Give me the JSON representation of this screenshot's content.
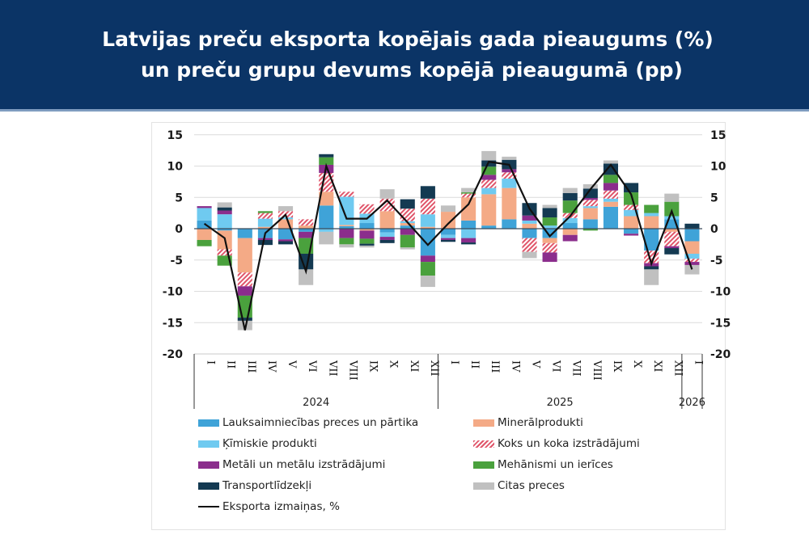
{
  "header": {
    "title_line1": "Latvijas preču eksporta kopējais gada pieaugums (%)",
    "title_line2": "un preču grupu devums kopējā pieaugumā (pp)",
    "background_color": "#0b3466"
  },
  "chart_data": {
    "type": "bar",
    "stacked": true,
    "title": "Latvijas preču eksporta kopējais gada pieaugums (%) un preču grupu devums kopējā pieaugumā (pp)",
    "xlabel": "",
    "ylabel": "",
    "ylim": [
      -20,
      15
    ],
    "yticks": [
      15,
      10,
      5,
      0,
      -5,
      -10,
      -15,
      -20
    ],
    "y_tick_labels": [
      "15",
      "10",
      "5",
      "0",
      "-5",
      "-10",
      "-15",
      "-20"
    ],
    "grid": true,
    "legend_position": "bottom",
    "categories": [
      "I",
      "II",
      "III",
      "IV",
      "V",
      "VI",
      "VII",
      "VIII",
      "IX",
      "X",
      "XI",
      "XII",
      "I",
      "II",
      "III",
      "IV",
      "V",
      "VI",
      "VII",
      "VIII",
      "IX",
      "X",
      "XI",
      "XII",
      "I"
    ],
    "year_groups": [
      {
        "label": "2024",
        "count": 12
      },
      {
        "label": "2025",
        "count": 12
      },
      {
        "label": "2026",
        "count": 1
      }
    ],
    "series": [
      {
        "name": "Lauksaimniecības preces un pārtika",
        "color": "#3fa3d8",
        "pattern": "solid",
        "values": [
          1.3,
          -0.3,
          -1.5,
          -1.5,
          -1.7,
          -0.5,
          3.7,
          0.4,
          0.9,
          -0.6,
          0.5,
          -4.3,
          -1.0,
          1.3,
          0.5,
          1.5,
          -1.5,
          -1.5,
          0.9,
          1.5,
          3.5,
          -0.8,
          -3.5,
          1.5,
          -2.0
        ]
      },
      {
        "name": "Minerālprodukti",
        "color": "#f4aa86",
        "pattern": "solid",
        "values": [
          -1.8,
          -3.0,
          -5.5,
          0.3,
          1.5,
          0.5,
          2.2,
          0.2,
          -0.3,
          2.8,
          0.4,
          0.3,
          2.7,
          3.7,
          5.0,
          5.0,
          0.8,
          -0.8,
          -1.0,
          1.8,
          0.8,
          2.0,
          2.0,
          -0.5,
          -2.0
        ]
      },
      {
        "name": "Ķīmiskie produkti",
        "color": "#6fcaf0",
        "pattern": "solid",
        "values": [
          2.0,
          2.3,
          0.0,
          1.3,
          0.3,
          0.0,
          -0.5,
          4.5,
          1.5,
          -0.7,
          0.3,
          2.0,
          -0.5,
          -1.5,
          1.0,
          1.5,
          0.5,
          0.5,
          0.8,
          0.3,
          0.5,
          1.0,
          0.5,
          0.5,
          -0.8
        ]
      },
      {
        "name": "Koks un koka izstrādājumi",
        "color": "#e0556a",
        "pattern": "hatch",
        "values": [
          0.0,
          -1.0,
          -2.2,
          0.9,
          1.0,
          1.0,
          3.0,
          0.8,
          1.5,
          2.0,
          2.0,
          2.5,
          0.0,
          0.6,
          1.3,
          1.0,
          -2.2,
          -1.5,
          0.8,
          1.0,
          1.3,
          0.8,
          -2.0,
          -2.3,
          -0.5
        ]
      },
      {
        "name": "Metāli un metālu izstrādājumi",
        "color": "#8b2d8c",
        "pattern": "solid",
        "values": [
          0.3,
          0.6,
          -1.5,
          -0.3,
          -0.3,
          -1.0,
          1.3,
          -1.5,
          -1.3,
          -0.5,
          -1.0,
          -1.0,
          -0.3,
          -0.7,
          0.8,
          0.5,
          0.8,
          -1.5,
          -1.0,
          0.3,
          1.2,
          -0.3,
          -0.5,
          -0.3,
          -0.5
        ]
      },
      {
        "name": "Mehānismi un ierīces",
        "color": "#4aa13d",
        "pattern": "solid",
        "values": [
          -1.0,
          -1.6,
          -3.5,
          0.3,
          0.0,
          -2.5,
          1.2,
          -1.0,
          -0.8,
          0.0,
          -2.0,
          -2.2,
          0.0,
          0.2,
          1.3,
          0.0,
          0.0,
          1.3,
          2.0,
          -0.3,
          1.3,
          2.0,
          1.3,
          2.3,
          0.0
        ]
      },
      {
        "name": "Transportlīdzekļi",
        "color": "#143a52",
        "pattern": "solid",
        "values": [
          0.0,
          0.5,
          -0.5,
          -0.8,
          -0.5,
          -2.5,
          0.5,
          0.0,
          -0.3,
          -0.5,
          1.5,
          2.0,
          -0.3,
          -0.3,
          1.0,
          1.5,
          2.0,
          1.5,
          1.2,
          1.5,
          1.8,
          1.5,
          -0.5,
          -1.0,
          0.8
        ]
      },
      {
        "name": "Citas preces",
        "color": "#c0c0c0",
        "pattern": "solid",
        "values": [
          0.0,
          0.8,
          -1.5,
          0.0,
          0.8,
          -2.5,
          -2.0,
          -0.5,
          -0.3,
          1.5,
          -0.3,
          -1.8,
          1.0,
          0.7,
          1.5,
          0.5,
          -1.0,
          0.5,
          0.8,
          0.7,
          0.5,
          0.0,
          -2.5,
          1.3,
          -1.5
        ]
      }
    ],
    "line": {
      "name": "Eksporta izmaiņas, %",
      "color": "#111111",
      "values": [
        0.8,
        -1.5,
        -16.2,
        -0.7,
        2.2,
        -6.8,
        10.0,
        1.6,
        1.6,
        4.5,
        1.0,
        -2.6,
        0.8,
        3.9,
        10.7,
        10.2,
        3.2,
        -1.2,
        2.0,
        6.3,
        10.2,
        5.5,
        -5.6,
        2.8,
        -6.5
      ]
    }
  },
  "legend": {
    "items": [
      {
        "label": "Lauksaimniecības preces un pārtika",
        "type": "bar",
        "color": "#3fa3d8"
      },
      {
        "label": "Minerālprodukti",
        "type": "bar",
        "color": "#f4aa86"
      },
      {
        "label": "Ķīmiskie produkti",
        "type": "bar",
        "color": "#6fcaf0"
      },
      {
        "label": "Koks un koka izstrādājumi",
        "type": "hatch",
        "color": "#e0556a"
      },
      {
        "label": "Metāli un metālu izstrādājumi",
        "type": "bar",
        "color": "#8b2d8c"
      },
      {
        "label": "Mehānismi un ierīces",
        "type": "bar",
        "color": "#4aa13d"
      },
      {
        "label": "Transportlīdzekļi",
        "type": "bar",
        "color": "#143a52"
      },
      {
        "label": "Citas preces",
        "type": "bar",
        "color": "#c0c0c0"
      },
      {
        "label": "Eksporta izmaiņas, %",
        "type": "line",
        "color": "#111111"
      }
    ]
  }
}
